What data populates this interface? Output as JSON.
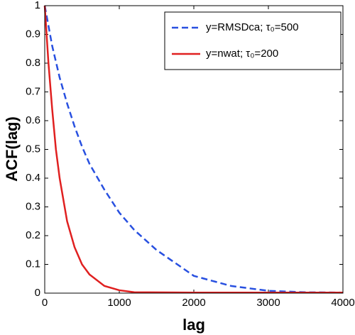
{
  "chart_data": {
    "type": "line",
    "xlabel": "lag",
    "ylabel": "ACF(lag)",
    "xlim": [
      0,
      4000
    ],
    "xticks": [
      0,
      1000,
      2000,
      3000,
      4000
    ],
    "ylim": [
      0,
      1
    ],
    "yticks": [
      0,
      0.1,
      0.2,
      0.3,
      0.4,
      0.5,
      0.6,
      0.7,
      0.8,
      0.9,
      1
    ],
    "grid": false,
    "legend": "upper right",
    "series": [
      {
        "name": "y=RMSDca; τ₀=500",
        "color": "#2850e0",
        "dashed": true,
        "x": [
          0,
          100,
          200,
          300,
          400,
          500,
          600,
          800,
          1000,
          1200,
          1500,
          2000,
          2500,
          3000,
          3500,
          4000
        ],
        "values": [
          1,
          0.86,
          0.75,
          0.66,
          0.58,
          0.51,
          0.45,
          0.36,
          0.28,
          0.22,
          0.15,
          0.06,
          0.025,
          0.008,
          0.003,
          0.002
        ]
      },
      {
        "name": "y=nwat; τ₀=200",
        "color": "#e02020",
        "dashed": false,
        "x": [
          0,
          50,
          100,
          150,
          200,
          300,
          400,
          500,
          600,
          800,
          1000,
          1200,
          2000,
          3000,
          4000
        ],
        "values": [
          1,
          0.8,
          0.64,
          0.5,
          0.4,
          0.25,
          0.16,
          0.1,
          0.065,
          0.025,
          0.01,
          0.003,
          0.002,
          0.002,
          0.002
        ]
      }
    ]
  }
}
